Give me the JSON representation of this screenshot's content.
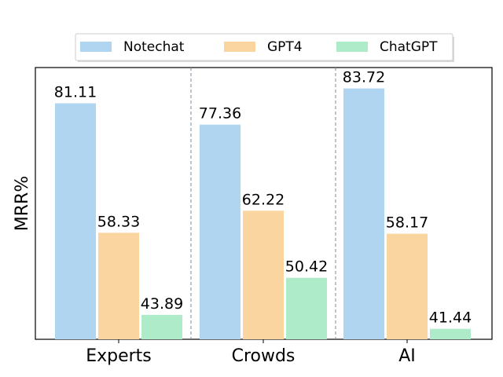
{
  "chart_data": {
    "type": "bar",
    "title": "",
    "xlabel": "",
    "ylabel": "MRR%",
    "categories": [
      "Experts",
      "Crowds",
      "AI"
    ],
    "series": [
      {
        "name": "Notechat",
        "color": "#b0d5f0",
        "values": [
          81.11,
          77.36,
          83.72
        ],
        "labels": [
          "81.11",
          "77.36",
          "83.72"
        ]
      },
      {
        "name": "GPT4",
        "color": "#fad5a0",
        "values": [
          58.33,
          62.22,
          58.17
        ],
        "labels": [
          "58.33",
          "62.22",
          "58.17"
        ]
      },
      {
        "name": "ChatGPT",
        "color": "#aeebc8",
        "values": [
          43.89,
          50.42,
          41.44
        ],
        "labels": [
          "43.89",
          "50.42",
          "41.44"
        ]
      }
    ],
    "ylim": [
      39.6,
      87.4
    ],
    "yticks_visible": false,
    "legend_position": "top-center",
    "group_separators": "dashed"
  }
}
